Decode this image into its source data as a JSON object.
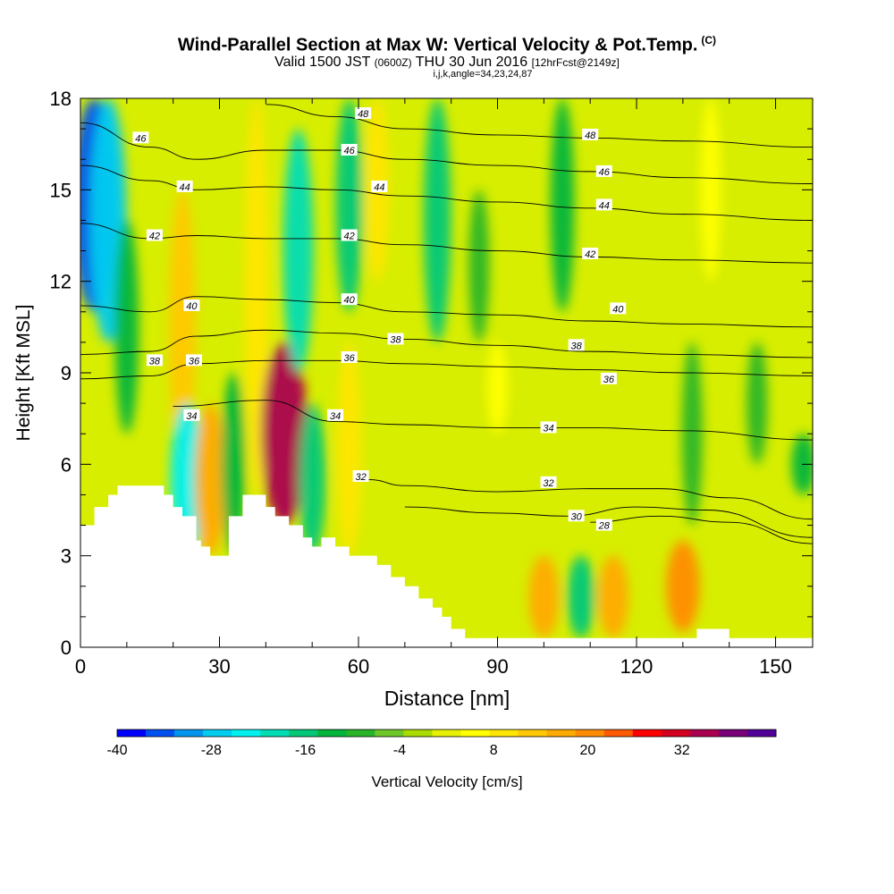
{
  "header": {
    "title": "Wind-Parallel Section at Max W: Vertical Velocity & Pot.Temp.",
    "copyright": "(C)",
    "subtitle_valid": "Valid 1500 JST",
    "subtitle_utc": "(0600Z)",
    "subtitle_date": "THU 30 Jun 2016",
    "subtitle_fcst": "[12hrFcst@2149z]",
    "sub2": "i,j,k,angle=34,23,24,87"
  },
  "chart_data": {
    "type": "contour",
    "xlabel": "Distance [nm]",
    "ylabel": "Height [Kft MSL]",
    "xlim": [
      0,
      158
    ],
    "ylim": [
      0,
      18
    ],
    "xticks": [
      0,
      30,
      60,
      90,
      120,
      150
    ],
    "yticks": [
      0,
      3,
      6,
      9,
      12,
      15,
      18
    ],
    "colorbar": {
      "label": "Vertical Velocity [cm/s]",
      "min": -40,
      "max": 44,
      "step": 4,
      "tick_values": [
        -40,
        -28,
        -16,
        -4,
        8,
        20,
        32
      ],
      "colors": [
        "#0000ff",
        "#0050f0",
        "#0096f0",
        "#00ccf0",
        "#00f0f0",
        "#00dcb4",
        "#00c878",
        "#00b43c",
        "#28b428",
        "#6ec828",
        "#aadc00",
        "#e6f000",
        "#ffff00",
        "#ffe600",
        "#ffc800",
        "#ffaa00",
        "#ff8c00",
        "#ff5a00",
        "#ff0000",
        "#d2001e",
        "#aa0050",
        "#780078",
        "#500096"
      ]
    },
    "velocity_bands": [
      {
        "x": 3,
        "w": -36,
        "top": 18,
        "bottom": 11
      },
      {
        "x": 6,
        "w": -28,
        "top": 18,
        "bottom": 10
      },
      {
        "x": 10,
        "w": -12,
        "top": 14,
        "bottom": 7
      },
      {
        "x": 22,
        "w": 16,
        "top": 15,
        "bottom": 6
      },
      {
        "x": 23,
        "w": -24,
        "top": 8,
        "bottom": 3
      },
      {
        "x": 28,
        "w": 20,
        "top": 8,
        "bottom": 3
      },
      {
        "x": 33,
        "w": -12,
        "top": 9,
        "bottom": 3
      },
      {
        "x": 38,
        "w": 12,
        "top": 18,
        "bottom": 5
      },
      {
        "x": 44,
        "w": 40,
        "top": 10,
        "bottom": 4
      },
      {
        "x": 47,
        "w": -20,
        "top": 17,
        "bottom": 9
      },
      {
        "x": 50,
        "w": -16,
        "top": 8,
        "bottom": 3
      },
      {
        "x": 58,
        "w": -16,
        "top": 18,
        "bottom": 11
      },
      {
        "x": 58,
        "w": 12,
        "top": 10,
        "bottom": 3
      },
      {
        "x": 64,
        "w": 12,
        "top": 18,
        "bottom": 12
      },
      {
        "x": 77,
        "w": -16,
        "top": 18,
        "bottom": 10
      },
      {
        "x": 86,
        "w": -8,
        "top": 15,
        "bottom": 10
      },
      {
        "x": 90,
        "w": 8,
        "top": 10,
        "bottom": 7
      },
      {
        "x": 100,
        "w": 20,
        "top": 3,
        "bottom": 0.3
      },
      {
        "x": 108,
        "w": -16,
        "top": 3,
        "bottom": 0.3
      },
      {
        "x": 104,
        "w": -12,
        "top": 18,
        "bottom": 11
      },
      {
        "x": 115,
        "w": 20,
        "top": 3,
        "bottom": 0.3
      },
      {
        "x": 130,
        "w": 24,
        "top": 3.5,
        "bottom": 0.5
      },
      {
        "x": 132,
        "w": -8,
        "top": 10,
        "bottom": 4
      },
      {
        "x": 136,
        "w": 8,
        "top": 18,
        "bottom": 12
      },
      {
        "x": 146,
        "w": -8,
        "top": 10,
        "bottom": 6
      },
      {
        "x": 156,
        "w": -12,
        "top": 7,
        "bottom": 5
      }
    ],
    "terrain": [
      [
        0,
        4
      ],
      [
        3,
        4
      ],
      [
        3,
        4.6
      ],
      [
        6,
        4.6
      ],
      [
        6,
        5
      ],
      [
        8,
        5
      ],
      [
        8,
        5.3
      ],
      [
        18,
        5.3
      ],
      [
        18,
        5
      ],
      [
        20,
        5
      ],
      [
        20,
        4.6
      ],
      [
        22,
        4.6
      ],
      [
        22,
        4.3
      ],
      [
        25,
        4.3
      ],
      [
        25,
        3.5
      ],
      [
        26,
        3.5
      ],
      [
        26,
        3.3
      ],
      [
        28,
        3.3
      ],
      [
        28,
        3
      ],
      [
        32,
        3
      ],
      [
        32,
        4.3
      ],
      [
        35,
        4.3
      ],
      [
        35,
        5
      ],
      [
        40,
        5
      ],
      [
        40,
        4.6
      ],
      [
        42,
        4.6
      ],
      [
        42,
        4.3
      ],
      [
        45,
        4.3
      ],
      [
        45,
        4
      ],
      [
        48,
        4
      ],
      [
        48,
        3.6
      ],
      [
        50,
        3.6
      ],
      [
        50,
        3.3
      ],
      [
        52,
        3.3
      ],
      [
        52,
        3.6
      ],
      [
        55,
        3.6
      ],
      [
        55,
        3.3
      ],
      [
        58,
        3.3
      ],
      [
        58,
        3
      ],
      [
        64,
        3
      ],
      [
        64,
        2.7
      ],
      [
        67,
        2.7
      ],
      [
        67,
        2.3
      ],
      [
        70,
        2.3
      ],
      [
        70,
        2
      ],
      [
        73,
        2
      ],
      [
        73,
        1.6
      ],
      [
        76,
        1.6
      ],
      [
        76,
        1.3
      ],
      [
        78,
        1.3
      ],
      [
        78,
        1
      ],
      [
        80,
        1
      ],
      [
        80,
        0.6
      ],
      [
        83,
        0.6
      ],
      [
        83,
        0.3
      ],
      [
        133,
        0.3
      ],
      [
        133,
        0.6
      ],
      [
        140,
        0.6
      ],
      [
        140,
        0.3
      ],
      [
        158,
        0.3
      ]
    ],
    "isentropes": [
      {
        "level": 28,
        "points": [
          [
            110,
            4.1
          ],
          [
            125,
            4.3
          ],
          [
            140,
            4.1
          ],
          [
            158,
            3.4
          ]
        ]
      },
      {
        "level": 30,
        "points": [
          [
            70,
            4.6
          ],
          [
            90,
            4.4
          ],
          [
            105,
            4.3
          ],
          [
            120,
            4.6
          ],
          [
            135,
            4.5
          ],
          [
            158,
            3.6
          ]
        ]
      },
      {
        "level": 32,
        "points": [
          [
            62,
            5.5
          ],
          [
            70,
            5.3
          ],
          [
            90,
            5.1
          ],
          [
            110,
            5.2
          ],
          [
            125,
            5.2
          ],
          [
            140,
            4.9
          ],
          [
            158,
            4.2
          ]
        ]
      },
      {
        "level": 34,
        "points": [
          [
            20,
            7.9
          ],
          [
            40,
            8.1
          ],
          [
            55,
            7.4
          ],
          [
            70,
            7.3
          ],
          [
            90,
            7.2
          ],
          [
            110,
            7.2
          ],
          [
            130,
            7.1
          ],
          [
            158,
            6.8
          ]
        ]
      },
      {
        "level": 36,
        "points": [
          [
            0,
            8.8
          ],
          [
            15,
            8.9
          ],
          [
            25,
            9.3
          ],
          [
            40,
            9.4
          ],
          [
            55,
            9.4
          ],
          [
            70,
            9.3
          ],
          [
            90,
            9.2
          ],
          [
            110,
            9.1
          ],
          [
            130,
            9.0
          ],
          [
            158,
            8.9
          ]
        ]
      },
      {
        "level": 38,
        "points": [
          [
            0,
            9.6
          ],
          [
            15,
            9.7
          ],
          [
            25,
            10.2
          ],
          [
            40,
            10.4
          ],
          [
            55,
            10.3
          ],
          [
            70,
            10.1
          ],
          [
            90,
            9.9
          ],
          [
            110,
            9.7
          ],
          [
            130,
            9.6
          ],
          [
            158,
            9.5
          ]
        ]
      },
      {
        "level": 40,
        "points": [
          [
            0,
            11.2
          ],
          [
            15,
            11.0
          ],
          [
            25,
            11.5
          ],
          [
            40,
            11.4
          ],
          [
            55,
            11.3
          ],
          [
            70,
            11.0
          ],
          [
            90,
            10.9
          ],
          [
            110,
            10.7
          ],
          [
            130,
            10.6
          ],
          [
            158,
            10.5
          ]
        ]
      },
      {
        "level": 42,
        "points": [
          [
            0,
            13.9
          ],
          [
            15,
            13.4
          ],
          [
            25,
            13.5
          ],
          [
            40,
            13.4
          ],
          [
            55,
            13.4
          ],
          [
            70,
            13.2
          ],
          [
            90,
            13.0
          ],
          [
            110,
            12.8
          ],
          [
            130,
            12.7
          ],
          [
            158,
            12.6
          ]
        ]
      },
      {
        "level": 44,
        "points": [
          [
            0,
            15.8
          ],
          [
            15,
            15.3
          ],
          [
            25,
            15.0
          ],
          [
            40,
            15.1
          ],
          [
            55,
            15.0
          ],
          [
            70,
            14.8
          ],
          [
            90,
            14.6
          ],
          [
            110,
            14.4
          ],
          [
            130,
            14.2
          ],
          [
            158,
            14.0
          ]
        ]
      },
      {
        "level": 46,
        "points": [
          [
            0,
            17.2
          ],
          [
            15,
            16.4
          ],
          [
            25,
            16.0
          ],
          [
            40,
            16.3
          ],
          [
            55,
            16.3
          ],
          [
            70,
            16.0
          ],
          [
            90,
            15.8
          ],
          [
            110,
            15.6
          ],
          [
            130,
            15.4
          ],
          [
            158,
            15.2
          ]
        ]
      },
      {
        "level": 48,
        "points": [
          [
            40,
            17.8
          ],
          [
            55,
            17.4
          ],
          [
            70,
            17.0
          ],
          [
            90,
            16.8
          ],
          [
            110,
            16.7
          ],
          [
            130,
            16.6
          ],
          [
            158,
            16.4
          ]
        ]
      }
    ],
    "contour_labels": [
      {
        "text": "46",
        "x": 13,
        "y": 16.7
      },
      {
        "text": "44",
        "x": 22.5,
        "y": 15.1
      },
      {
        "text": "42",
        "x": 16,
        "y": 13.5
      },
      {
        "text": "40",
        "x": 24,
        "y": 11.2
      },
      {
        "text": "38",
        "x": 16,
        "y": 9.4
      },
      {
        "text": "36",
        "x": 24.5,
        "y": 9.4
      },
      {
        "text": "34",
        "x": 24,
        "y": 7.6
      },
      {
        "text": "48",
        "x": 61,
        "y": 17.5
      },
      {
        "text": "46",
        "x": 58,
        "y": 16.3
      },
      {
        "text": "44",
        "x": 64.5,
        "y": 15.1
      },
      {
        "text": "42",
        "x": 58,
        "y": 13.5
      },
      {
        "text": "40",
        "x": 58,
        "y": 11.4
      },
      {
        "text": "36",
        "x": 58,
        "y": 9.5
      },
      {
        "text": "38",
        "x": 68,
        "y": 10.1
      },
      {
        "text": "34",
        "x": 55,
        "y": 7.6
      },
      {
        "text": "32",
        "x": 60.5,
        "y": 5.6
      },
      {
        "text": "48",
        "x": 110,
        "y": 16.8
      },
      {
        "text": "46",
        "x": 113,
        "y": 15.6
      },
      {
        "text": "44",
        "x": 113,
        "y": 14.5
      },
      {
        "text": "42",
        "x": 110,
        "y": 12.9
      },
      {
        "text": "40",
        "x": 116,
        "y": 11.1
      },
      {
        "text": "38",
        "x": 107,
        "y": 9.9
      },
      {
        "text": "36",
        "x": 114,
        "y": 8.8
      },
      {
        "text": "34",
        "x": 101,
        "y": 7.2
      },
      {
        "text": "32",
        "x": 101,
        "y": 5.4
      },
      {
        "text": "30",
        "x": 107,
        "y": 4.3
      },
      {
        "text": "28",
        "x": 113,
        "y": 4.0
      }
    ]
  }
}
